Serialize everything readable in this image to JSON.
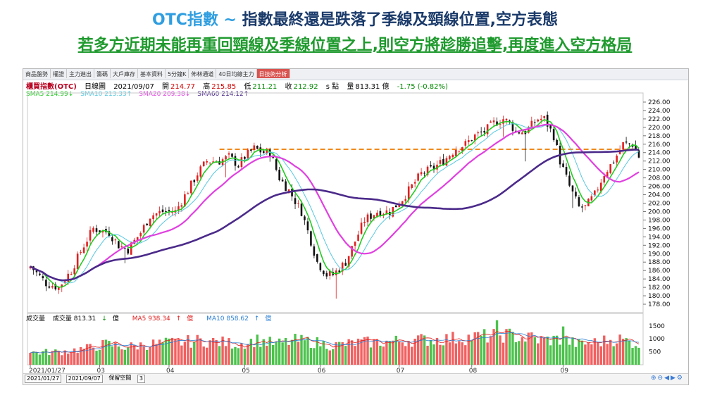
{
  "headline": {
    "title_blue": "OTC指數 ~ ",
    "title_dark": "指數最終還是跌落了季線及頸線位置,空方表態",
    "subtitle": "若多方近期未能再重回頸線及季線位置之上,則空方將趁勝追擊,再度進入空方格局"
  },
  "tabs": [
    "商品盤勢",
    "權證",
    "主力進出",
    "籌碼",
    "大戶庫存",
    "基本資料",
    "5分鐘K",
    "佈林通道",
    "40日均線主力",
    "日技術分析"
  ],
  "active_tab_index": 9,
  "info": {
    "name": "櫃買指數(OTC)",
    "period": "日線圖",
    "date": "2021/09/07",
    "open_label": "開",
    "open": "214.77",
    "high_label": "高",
    "high": "215.85",
    "low_label": "低",
    "low": "211.21",
    "close_label": "收",
    "close": "212.92",
    "unit": "s 點",
    "vol_label": "量",
    "vol": "813.31 億",
    "change": "-1.75 (-0.82%)"
  },
  "ma_legend": [
    {
      "label": "SMA5 214.99",
      "arrow": "↓",
      "color": "#22cc22"
    },
    {
      "label": "SMA10 213.33",
      "arrow": "↑",
      "color": "#56c8e0"
    },
    {
      "label": "SMA20 209.38",
      "arrow": "↓",
      "color": "#e040e0"
    },
    {
      "label": "SMA60 214.12",
      "arrow": "↑",
      "color": "#4b2a8a"
    }
  ],
  "volume_legend": {
    "title": "成交量",
    "vol": "成交量 813.31",
    "vol_arrow": "↓",
    "vol_unit": "億",
    "ma5": "MA5 938.34",
    "ma5_arrow": "↑",
    "ma5_unit": "億",
    "ma10": "MA10 858.62",
    "ma10_arrow": "↑",
    "ma10_unit": "億"
  },
  "bottom": {
    "start_date": "2021/01/27",
    "end_date": "2021/09/07",
    "button": "保留空間",
    "count": "3"
  },
  "colors": {
    "up": "#e02020",
    "down": "#101010",
    "vol_up": "#f26060",
    "vol_down": "#4cc24c",
    "neckline": "#f08a1c",
    "sma5": "#22cc22",
    "sma10": "#56c8e0",
    "sma20": "#e040e0",
    "sma60": "#4b2a8a"
  },
  "chart_data": {
    "type": "candlestick",
    "x_tick_labels": [
      "2021/01/27",
      "03",
      "04",
      "05",
      "06",
      "07",
      "08",
      "09"
    ],
    "y_ticks": [
      "226.00",
      "224.00",
      "222.00",
      "220.00",
      "218.00",
      "216.00",
      "214.00",
      "212.00",
      "210.00",
      "208.00",
      "206.00",
      "204.00",
      "202.00",
      "200.00",
      "198.00",
      "196.00",
      "194.00",
      "192.00",
      "190.00",
      "188.00",
      "186.00",
      "184.00",
      "182.00",
      "180.00",
      "178.00"
    ],
    "ylim": [
      176.5,
      227.5
    ],
    "volume_ticks": [
      "1500",
      "1000",
      "500"
    ],
    "volume_ylim": [
      0,
      1850
    ],
    "neckline": 214.8,
    "close_anchors": [
      [
        0,
        187
      ],
      [
        5,
        183
      ],
      [
        9,
        182
      ],
      [
        13,
        186
      ],
      [
        17,
        192
      ],
      [
        20,
        196
      ],
      [
        25,
        195
      ],
      [
        28,
        192
      ],
      [
        31,
        191
      ],
      [
        35,
        195
      ],
      [
        38,
        199
      ],
      [
        42,
        200
      ],
      [
        46,
        200
      ],
      [
        50,
        205
      ],
      [
        53,
        209
      ],
      [
        56,
        212
      ],
      [
        60,
        212
      ],
      [
        63,
        213
      ],
      [
        66,
        211
      ],
      [
        68,
        213
      ],
      [
        71,
        215
      ],
      [
        74,
        214
      ],
      [
        76,
        214
      ],
      [
        79,
        208
      ],
      [
        82,
        205
      ],
      [
        86,
        200
      ],
      [
        89,
        193
      ],
      [
        91,
        188
      ],
      [
        94,
        185
      ],
      [
        96,
        185
      ],
      [
        100,
        188
      ],
      [
        103,
        193
      ],
      [
        106,
        198
      ],
      [
        110,
        200
      ],
      [
        114,
        200
      ],
      [
        118,
        203
      ],
      [
        121,
        206
      ],
      [
        124,
        209
      ],
      [
        127,
        210
      ],
      [
        131,
        212
      ],
      [
        135,
        215
      ],
      [
        138,
        216
      ],
      [
        141,
        218
      ],
      [
        144,
        219
      ],
      [
        147,
        221
      ],
      [
        150,
        222
      ],
      [
        152,
        221
      ],
      [
        154,
        219
      ],
      [
        157,
        219
      ],
      [
        161,
        222
      ],
      [
        163,
        222
      ],
      [
        166,
        218
      ],
      [
        168,
        212
      ],
      [
        171,
        206
      ],
      [
        174,
        201
      ],
      [
        176,
        201
      ],
      [
        179,
        204
      ],
      [
        182,
        209
      ],
      [
        185,
        212
      ],
      [
        188,
        216
      ],
      [
        191,
        216
      ],
      [
        193,
        213
      ]
    ],
    "volume_anchors": [
      [
        0,
        480
      ],
      [
        10,
        520
      ],
      [
        18,
        650
      ],
      [
        24,
        820
      ],
      [
        30,
        700
      ],
      [
        38,
        820
      ],
      [
        46,
        880
      ],
      [
        54,
        960
      ],
      [
        60,
        900
      ],
      [
        66,
        820
      ],
      [
        72,
        980
      ],
      [
        78,
        820
      ],
      [
        84,
        960
      ],
      [
        90,
        900
      ],
      [
        96,
        760
      ],
      [
        104,
        880
      ],
      [
        112,
        900
      ],
      [
        120,
        980
      ],
      [
        128,
        1000
      ],
      [
        136,
        1060
      ],
      [
        144,
        1120
      ],
      [
        150,
        1200
      ],
      [
        156,
        1080
      ],
      [
        162,
        980
      ],
      [
        168,
        1000
      ],
      [
        174,
        820
      ],
      [
        180,
        900
      ],
      [
        186,
        1040
      ],
      [
        193,
        820
      ]
    ],
    "notable_volume_bars": [
      [
        148,
        1720
      ],
      [
        159,
        1250
      ],
      [
        169,
        1480
      ]
    ],
    "series": [
      {
        "name": "SMA5",
        "color": "#22cc22",
        "width": 1.6
      },
      {
        "name": "SMA10",
        "color": "#56c8e0",
        "width": 1.0
      },
      {
        "name": "SMA20",
        "color": "#e040e0",
        "width": 2.2
      },
      {
        "name": "SMA60",
        "color": "#4b2a8a",
        "width": 2.6
      }
    ]
  }
}
